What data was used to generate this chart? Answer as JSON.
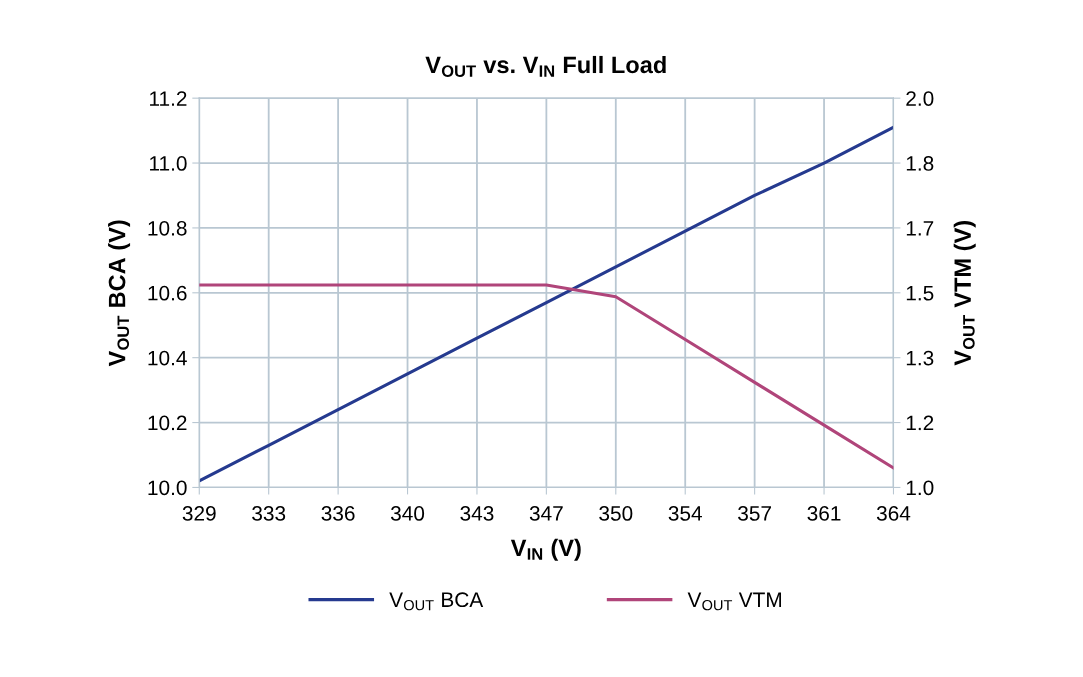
{
  "chart_data": {
    "type": "line",
    "title": "V$_{OUT}$ vs. V$_{IN}$ Full Load",
    "xlabel": "V$_{IN}$ (V)",
    "ylabel": "V$_{OUT}$ BCA (V)",
    "y2label": "V$_{OUT}$ VTM (V)",
    "categories": [
      "329",
      "333",
      "336",
      "340",
      "343",
      "347",
      "350",
      "354",
      "357",
      "361",
      "364"
    ],
    "series": [
      {
        "name": "V$_{OUT}$ BCA",
        "color": "#253a8f",
        "values": [
          10.02,
          10.13,
          10.24,
          10.35,
          10.46,
          10.57,
          10.68,
          10.79,
          10.9,
          11.0,
          11.11
        ]
      },
      {
        "name": "V$_{OUT}$ VTM",
        "color": "#b0457a",
        "axis": "y2",
        "values": [
          1.52,
          1.52,
          1.52,
          1.52,
          1.52,
          1.52,
          1.49,
          1.38,
          1.27,
          1.16,
          1.05
        ]
      }
    ],
    "ylim": [
      10.0,
      11.2
    ],
    "yticks": [
      {
        "value": 10.0,
        "label": "10.0"
      },
      {
        "value": 10.2,
        "label": "10.2"
      },
      {
        "value": 10.4,
        "label": "10.4"
      },
      {
        "value": 10.6,
        "label": "10.6"
      },
      {
        "value": 10.8,
        "label": "10.8"
      },
      {
        "value": 11.0,
        "label": "11.0"
      },
      {
        "value": 11.2,
        "label": "11.2"
      }
    ],
    "y2lim": [
      1.0,
      2.0
    ],
    "y2ticks": [
      {
        "value": 1.0,
        "label": "1.0"
      },
      {
        "value": 1.1667,
        "label": "1.2"
      },
      {
        "value": 1.3333,
        "label": "1.3"
      },
      {
        "value": 1.5,
        "label": "1.5"
      },
      {
        "value": 1.6667,
        "label": "1.7"
      },
      {
        "value": 1.8333,
        "label": "1.8"
      },
      {
        "value": 2.0,
        "label": "2.0"
      }
    ],
    "grid": true,
    "legend": "bottom",
    "marker": "none",
    "line_style": "solid"
  }
}
